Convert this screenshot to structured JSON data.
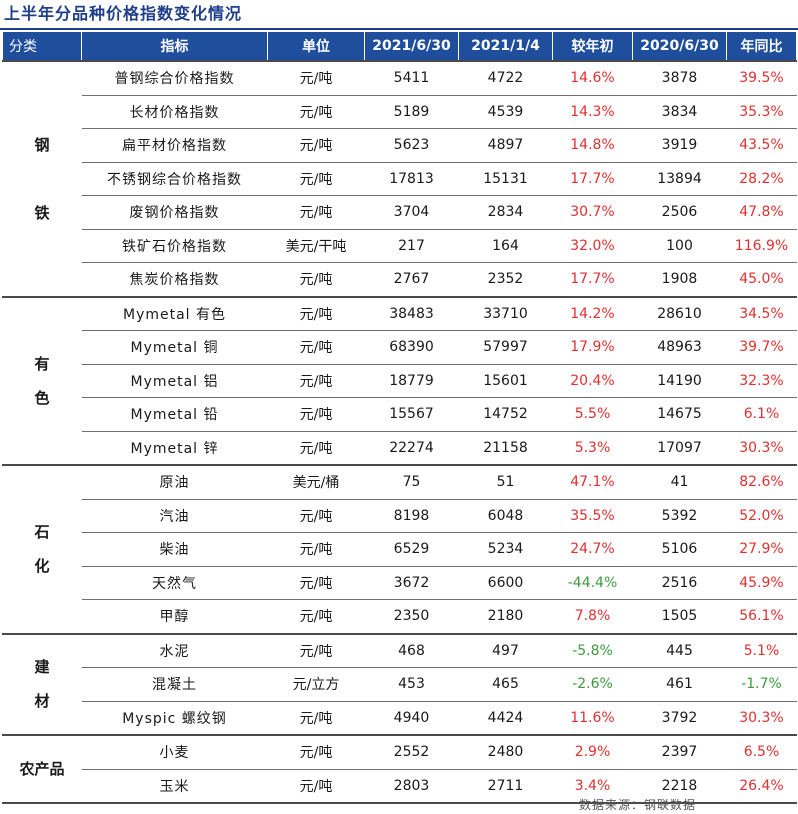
{
  "title": "上半年分品种价格指数变化情况",
  "headers": [
    "分类",
    "指标",
    "单位",
    "2021/6/30",
    "2021/1/4",
    "较年初",
    "2020/6/30",
    "年同比"
  ],
  "groups": [
    {
      "category": "钢\n\n铁",
      "rows": [
        {
          "indicator": "普钢综合价格指数",
          "unit": "元/吨",
          "v2021_6": "5411",
          "v2021_1": "4722",
          "ytd": "14.6%",
          "v2020_6": "3878",
          "yoy": "39.5%"
        },
        {
          "indicator": "长材价格指数",
          "unit": "元/吨",
          "v2021_6": "5189",
          "v2021_1": "4539",
          "ytd": "14.3%",
          "v2020_6": "3834",
          "yoy": "35.3%"
        },
        {
          "indicator": "扁平材价格指数",
          "unit": "元/吨",
          "v2021_6": "5623",
          "v2021_1": "4897",
          "ytd": "14.8%",
          "v2020_6": "3919",
          "yoy": "43.5%"
        },
        {
          "indicator": "不锈钢综合价格指数",
          "unit": "元/吨",
          "v2021_6": "17813",
          "v2021_1": "15131",
          "ytd": "17.7%",
          "v2020_6": "13894",
          "yoy": "28.2%"
        },
        {
          "indicator": "废钢价格指数",
          "unit": "元/吨",
          "v2021_6": "3704",
          "v2021_1": "2834",
          "ytd": "30.7%",
          "v2020_6": "2506",
          "yoy": "47.8%"
        },
        {
          "indicator": "铁矿石价格指数",
          "unit": "美元/干吨",
          "v2021_6": "217",
          "v2021_1": "164",
          "ytd": "32.0%",
          "v2020_6": "100",
          "yoy": "116.9%"
        },
        {
          "indicator": "焦炭价格指数",
          "unit": "元/吨",
          "v2021_6": "2767",
          "v2021_1": "2352",
          "ytd": "17.7%",
          "v2020_6": "1908",
          "yoy": "45.0%"
        }
      ]
    },
    {
      "category": "有\n色",
      "rows": [
        {
          "indicator": "Mymetal 有色",
          "unit": "元/吨",
          "v2021_6": "38483",
          "v2021_1": "33710",
          "ytd": "14.2%",
          "v2020_6": "28610",
          "yoy": "34.5%"
        },
        {
          "indicator": "Mymetal 铜",
          "unit": "元/吨",
          "v2021_6": "68390",
          "v2021_1": "57997",
          "ytd": "17.9%",
          "v2020_6": "48963",
          "yoy": "39.7%"
        },
        {
          "indicator": "Mymetal 铝",
          "unit": "元/吨",
          "v2021_6": "18779",
          "v2021_1": "15601",
          "ytd": "20.4%",
          "v2020_6": "14190",
          "yoy": "32.3%"
        },
        {
          "indicator": "Mymetal 铅",
          "unit": "元/吨",
          "v2021_6": "15567",
          "v2021_1": "14752",
          "ytd": "5.5%",
          "v2020_6": "14675",
          "yoy": "6.1%"
        },
        {
          "indicator": "Mymetal 锌",
          "unit": "元/吨",
          "v2021_6": "22274",
          "v2021_1": "21158",
          "ytd": "5.3%",
          "v2020_6": "17097",
          "yoy": "30.3%"
        }
      ]
    },
    {
      "category": "石\n化",
      "rows": [
        {
          "indicator": "原油",
          "unit": "美元/桶",
          "v2021_6": "75",
          "v2021_1": "51",
          "ytd": "47.1%",
          "v2020_6": "41",
          "yoy": "82.6%"
        },
        {
          "indicator": "汽油",
          "unit": "元/吨",
          "v2021_6": "8198",
          "v2021_1": "6048",
          "ytd": "35.5%",
          "v2020_6": "5392",
          "yoy": "52.0%"
        },
        {
          "indicator": "柴油",
          "unit": "元/吨",
          "v2021_6": "6529",
          "v2021_1": "5234",
          "ytd": "24.7%",
          "v2020_6": "5106",
          "yoy": "27.9%"
        },
        {
          "indicator": "天然气",
          "unit": "元/吨",
          "v2021_6": "3672",
          "v2021_1": "6600",
          "ytd": "-44.4%",
          "v2020_6": "2516",
          "yoy": "45.9%"
        },
        {
          "indicator": "甲醇",
          "unit": "元/吨",
          "v2021_6": "2350",
          "v2021_1": "2180",
          "ytd": "7.8%",
          "v2020_6": "1505",
          "yoy": "56.1%"
        }
      ]
    },
    {
      "category": "建\n材",
      "rows": [
        {
          "indicator": "水泥",
          "unit": "元/吨",
          "v2021_6": "468",
          "v2021_1": "497",
          "ytd": "-5.8%",
          "v2020_6": "445",
          "yoy": "5.1%"
        },
        {
          "indicator": "混凝土",
          "unit": "元/立方",
          "v2021_6": "453",
          "v2021_1": "465",
          "ytd": "-2.6%",
          "v2020_6": "461",
          "yoy": "-1.7%"
        },
        {
          "indicator": "Myspic 螺纹钢",
          "unit": "元/吨",
          "v2021_6": "4940",
          "v2021_1": "4424",
          "ytd": "11.6%",
          "v2020_6": "3792",
          "yoy": "30.3%"
        }
      ]
    },
    {
      "category": "农产品",
      "rows": [
        {
          "indicator": "小麦",
          "unit": "元/吨",
          "v2021_6": "2552",
          "v2021_1": "2480",
          "ytd": "2.9%",
          "v2020_6": "2397",
          "yoy": "6.5%"
        },
        {
          "indicator": "玉米",
          "unit": "元/吨",
          "v2021_6": "2803",
          "v2021_1": "2711",
          "ytd": "3.4%",
          "v2020_6": "2218",
          "yoy": "26.4%"
        }
      ]
    }
  ],
  "footer": "数据来源：钢联数据",
  "colors": {
    "header_bg": "#1f4e9c",
    "title": "#1f3f8a",
    "positive": "#e03030",
    "negative": "#3f9a3f"
  }
}
